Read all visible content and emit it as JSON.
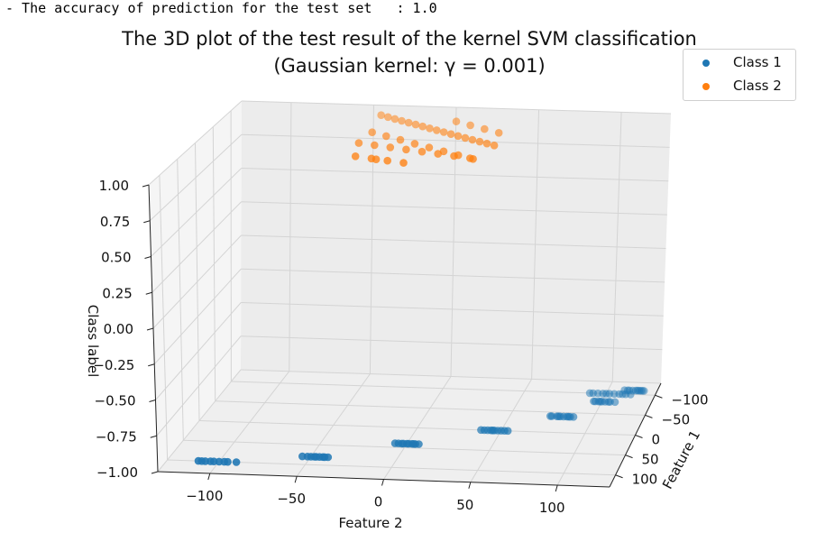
{
  "console_line": "- The accuracy of prediction for the test set   : 1.0",
  "chart_data": {
    "type": "scatter",
    "title": "The 3D plot of the test result of the kernel SVM classification",
    "subtitle": "(Gaussian kernel: γ = 0.001)",
    "xlabel": "Feature 1",
    "ylabel": "Feature 2",
    "zlabel": "Class label",
    "xticks": [
      "−100",
      "−50",
      "0",
      "50",
      "100"
    ],
    "yticks": [
      "−100",
      "−50",
      "0",
      "50",
      "100"
    ],
    "zticks": [
      "−1.00",
      "−0.75",
      "−0.50",
      "−0.25",
      "0.00",
      "0.25",
      "0.50",
      "0.75",
      "1.00"
    ],
    "xlim": [
      -130,
      130
    ],
    "ylim": [
      -130,
      130
    ],
    "zlim": [
      -1,
      1
    ],
    "grid": true,
    "legend_position": "top-right",
    "series": [
      {
        "name": "Class 1",
        "color": "#1f77b4",
        "x": [
          100,
          100,
          100,
          100,
          100,
          100,
          100,
          100,
          100,
          80,
          80,
          80,
          80,
          80,
          80,
          80,
          80,
          80,
          40,
          40,
          40,
          40,
          40,
          40,
          40,
          40,
          40,
          40,
          0,
          0,
          0,
          0,
          0,
          0,
          0,
          0,
          0,
          0,
          -40,
          -40,
          -40,
          -40,
          -40,
          -40,
          -40,
          -40,
          -40,
          -40,
          -80,
          -80,
          -80,
          -80,
          -80,
          -80,
          -80,
          -80,
          -80,
          -100,
          -100,
          -100,
          -100,
          -100,
          -100,
          -100,
          -100,
          -100,
          -100,
          -100,
          -110,
          -110,
          -110,
          -110,
          -110,
          -110,
          -110,
          -110,
          -110,
          -110
        ],
        "y": [
          -112,
          -108,
          -105,
          -100,
          -95,
          -90,
          -110,
          -103,
          -97,
          -50,
          -45,
          -40,
          -55,
          -48,
          -43,
          -52,
          -47,
          -42,
          -5,
          0,
          5,
          -3,
          3,
          7,
          -7,
          1,
          -2,
          4,
          40,
          45,
          50,
          42,
          48,
          52,
          44,
          46,
          38,
          54,
          75,
          80,
          85,
          78,
          82,
          88,
          74,
          84,
          79,
          86,
          95,
          100,
          105,
          98,
          102,
          108,
          96,
          104,
          99,
          90,
          95,
          100,
          105,
          110,
          115,
          92,
          98,
          102,
          108,
          112,
          110,
          115,
          120,
          112,
          118,
          122,
          113,
          117,
          119,
          121
        ],
        "z": [
          -1,
          -1,
          -1,
          -1,
          -1,
          -1,
          -1,
          -1,
          -1,
          -1,
          -1,
          -1,
          -1,
          -1,
          -1,
          -1,
          -1,
          -1,
          -1,
          -1,
          -1,
          -1,
          -1,
          -1,
          -1,
          -1,
          -1,
          -1,
          -1,
          -1,
          -1,
          -1,
          -1,
          -1,
          -1,
          -1,
          -1,
          -1,
          -1,
          -1,
          -1,
          -1,
          -1,
          -1,
          -1,
          -1,
          -1,
          -1,
          -1,
          -1,
          -1,
          -1,
          -1,
          -1,
          -1,
          -1,
          -1,
          -1,
          -1,
          -1,
          -1,
          -1,
          -1,
          -1,
          -1,
          -1,
          -1,
          -1,
          -1,
          -1,
          -1,
          -1,
          -1,
          -1,
          -1,
          -1,
          -1,
          -1,
          -1
        ]
      },
      {
        "name": "Class 2",
        "color": "#ff7f0e",
        "x": [
          -100,
          -95,
          -90,
          -85,
          -80,
          -75,
          -70,
          -65,
          -60,
          -55,
          -50,
          -45,
          -40,
          -35,
          -30,
          -25,
          -20,
          -15,
          -10,
          -5,
          0,
          5,
          10,
          15,
          20,
          25,
          30,
          35,
          40,
          -88,
          -78,
          -68,
          -58,
          -48,
          -38,
          -28,
          -18,
          -8,
          2,
          12,
          22,
          32
        ],
        "y": [
          -40,
          -35,
          -30,
          -25,
          -20,
          -15,
          -10,
          -5,
          0,
          5,
          10,
          15,
          20,
          25,
          30,
          35,
          40,
          -38,
          -28,
          -18,
          -8,
          2,
          12,
          22,
          32,
          -33,
          -23,
          -13,
          -3,
          7,
          17,
          27,
          37,
          -36,
          -26,
          -16,
          -6,
          4,
          14,
          24,
          34,
          -20
        ],
        "z": [
          1,
          1,
          1,
          1,
          1,
          1,
          1,
          1,
          1,
          1,
          1,
          1,
          1,
          1,
          1,
          1,
          1,
          1,
          1,
          1,
          1,
          1,
          1,
          1,
          1,
          1,
          1,
          1,
          1,
          1,
          1,
          1,
          1,
          1,
          1,
          1,
          1,
          1,
          1,
          1,
          1,
          1
        ]
      }
    ]
  }
}
